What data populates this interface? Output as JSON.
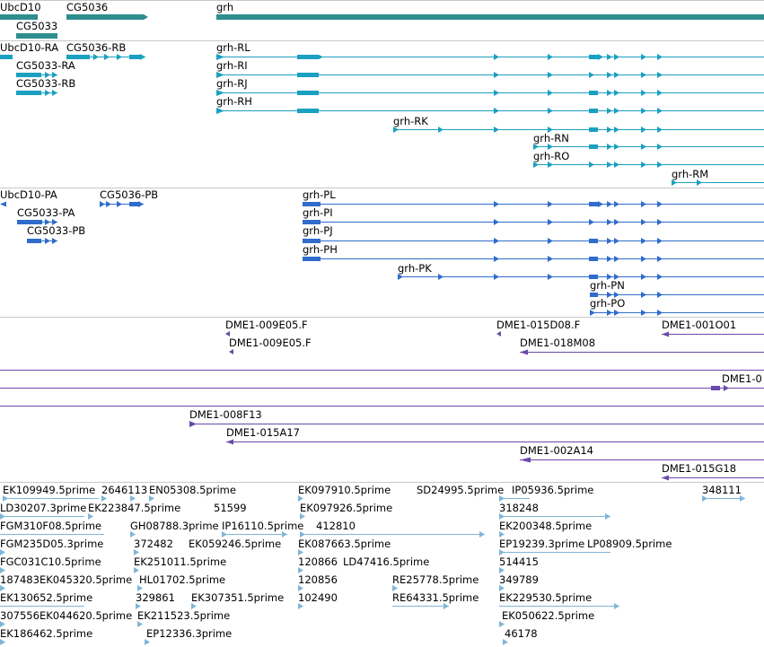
{
  "colors": {
    "gene": "#2e8e8e",
    "rna_a": "#1aa0c0",
    "rna_b": "#2f6ccc",
    "clone": "#6a4aa8",
    "est": "#7fb6d8",
    "divider": "#c8c8c8"
  },
  "tracks": {
    "genes": [
      {
        "name": "UbcD10",
        "label": "UbcD10"
      },
      {
        "name": "CG5036",
        "label": "CG5036"
      },
      {
        "name": "CG5033",
        "label": "CG5033"
      },
      {
        "name": "grh",
        "label": "grh"
      }
    ],
    "transcripts_a": [
      {
        "label": "UbcD10-RA"
      },
      {
        "label": "CG5036-RB"
      },
      {
        "label": "grh-RL"
      },
      {
        "label": "CG5033-RA"
      },
      {
        "label": "grh-RI"
      },
      {
        "label": "CG5033-RB"
      },
      {
        "label": "grh-RJ"
      },
      {
        "label": "grh-RH"
      },
      {
        "label": "grh-RK"
      },
      {
        "label": "grh-RN"
      },
      {
        "label": "grh-RO"
      },
      {
        "label": "grh-RM"
      }
    ],
    "transcripts_b": [
      {
        "label": "UbcD10-PA"
      },
      {
        "label": "CG5036-PB"
      },
      {
        "label": "grh-PL"
      },
      {
        "label": "CG5033-PA"
      },
      {
        "label": "grh-PI"
      },
      {
        "label": "CG5033-PB"
      },
      {
        "label": "grh-PJ"
      },
      {
        "label": "grh-PH"
      },
      {
        "label": "grh-PK"
      },
      {
        "label": "grh-PN"
      },
      {
        "label": "grh-PO"
      }
    ],
    "clones": [
      {
        "label": "DME1-009E05.F"
      },
      {
        "label": "DME1-015D08.F"
      },
      {
        "label": "DME1-001O01"
      },
      {
        "label": "DME1-009E05.F"
      },
      {
        "label": "DME1-018M08"
      },
      {
        "label": "DME1-0"
      },
      {
        "label": "DME1-008F13"
      },
      {
        "label": "DME1-015A17"
      },
      {
        "label": "DME1-002A14"
      },
      {
        "label": "DME1-015G18"
      }
    ],
    "ests": [
      {
        "label": "EK109949.5prime"
      },
      {
        "label": "2646113"
      },
      {
        "label": "EN05308.5prime"
      },
      {
        "label": "EK097910.5prime"
      },
      {
        "label": "SD24995.5prime"
      },
      {
        "label": "IP05936.5prime"
      },
      {
        "label": "348111"
      },
      {
        "label": "LD30207.3prime"
      },
      {
        "label": "EK223847.5prime"
      },
      {
        "label": "51599"
      },
      {
        "label": "EK097926.5prime"
      },
      {
        "label": "318248"
      },
      {
        "label": "FGM310F08.5prime"
      },
      {
        "label": "GH08788.3prime"
      },
      {
        "label": "IP16110.5prime"
      },
      {
        "label": "412810"
      },
      {
        "label": "EK200348.5prime"
      },
      {
        "label": "FGM235D05.3prime"
      },
      {
        "label": "372482"
      },
      {
        "label": "EK059246.5prime"
      },
      {
        "label": "EK087663.5prime"
      },
      {
        "label": "EP19239.3prime"
      },
      {
        "label": "LP08909.5prime"
      },
      {
        "label": "FGC031C10.5prime"
      },
      {
        "label": "EK251011.5prime"
      },
      {
        "label": "120866"
      },
      {
        "label": "LD47416.5prime"
      },
      {
        "label": "514415"
      },
      {
        "label": "187483"
      },
      {
        "label": "EK045320.5prime"
      },
      {
        "label": "HL01702.5prime"
      },
      {
        "label": "120856"
      },
      {
        "label": "RE25778.5prime"
      },
      {
        "label": "349789"
      },
      {
        "label": "EK130652.5prime"
      },
      {
        "label": "329861"
      },
      {
        "label": "EK307351.5prime"
      },
      {
        "label": "102490"
      },
      {
        "label": "RE64331.5prime"
      },
      {
        "label": "EK229530.5prime"
      },
      {
        "label": "307556"
      },
      {
        "label": "EK044620.5prime"
      },
      {
        "label": "EK211523.5prime"
      },
      {
        "label": "EK050622.5prime"
      },
      {
        "label": "EK186462.5prime"
      },
      {
        "label": "EP12336.3prime"
      },
      {
        "label": "46178"
      }
    ]
  }
}
